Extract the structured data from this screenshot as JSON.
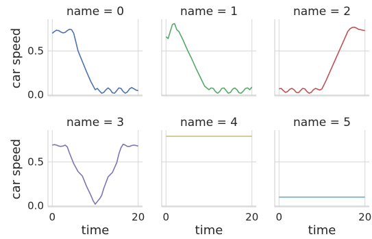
{
  "chart_data": {
    "type": "line",
    "xlabel": "time",
    "ylabel": "car speed",
    "xlim": [
      -1,
      21
    ],
    "ylim": [
      -0.01,
      0.86
    ],
    "xticks": [
      0,
      20
    ],
    "yticks": [
      0.0,
      0.5
    ],
    "ytick_labels": [
      "0.0",
      "0.5"
    ],
    "xtick_labels": [
      "0",
      "20"
    ],
    "grid": true,
    "panels": [
      {
        "title": "name = 0",
        "color": "#4c72b0",
        "x": [
          0,
          0.5,
          1,
          1.5,
          2,
          2.5,
          3,
          3.5,
          4,
          4.5,
          5,
          5.5,
          6,
          7,
          8,
          9,
          10,
          10.5,
          11,
          11.5,
          12,
          12.5,
          13,
          13.5,
          14,
          14.5,
          15,
          15.5,
          16,
          16.5,
          17,
          17.5,
          18,
          18.5,
          19,
          19.5,
          20
        ],
        "y": [
          0.7,
          0.72,
          0.735,
          0.73,
          0.715,
          0.705,
          0.71,
          0.73,
          0.745,
          0.74,
          0.7,
          0.6,
          0.5,
          0.38,
          0.26,
          0.15,
          0.06,
          0.075,
          0.045,
          0.02,
          0.03,
          0.06,
          0.08,
          0.06,
          0.025,
          0.02,
          0.05,
          0.08,
          0.075,
          0.04,
          0.02,
          0.035,
          0.07,
          0.085,
          0.07,
          0.055,
          0.05
        ]
      },
      {
        "title": "name = 1",
        "color": "#55a868",
        "x": [
          0,
          0.5,
          1,
          1.5,
          2,
          2.5,
          3,
          4,
          5,
          6,
          7,
          8,
          9,
          10,
          10.5,
          11,
          11.5,
          12,
          12.5,
          13,
          13.5,
          14,
          14.5,
          15,
          15.5,
          16,
          16.5,
          17,
          17.5,
          18,
          18.5,
          19,
          19.5,
          20
        ],
        "y": [
          0.66,
          0.64,
          0.72,
          0.8,
          0.81,
          0.74,
          0.72,
          0.62,
          0.51,
          0.41,
          0.3,
          0.2,
          0.1,
          0.06,
          0.08,
          0.075,
          0.04,
          0.02,
          0.04,
          0.075,
          0.08,
          0.05,
          0.02,
          0.03,
          0.065,
          0.08,
          0.06,
          0.025,
          0.02,
          0.045,
          0.075,
          0.08,
          0.06,
          0.09
        ]
      },
      {
        "title": "name = 2",
        "color": "#c44e52",
        "x": [
          0,
          0.5,
          1,
          1.5,
          2,
          2.5,
          3,
          3.5,
          4,
          4.5,
          5,
          5.5,
          6,
          6.5,
          7,
          7.5,
          8,
          8.5,
          9,
          9.5,
          10,
          11,
          12,
          13,
          14,
          15,
          16,
          16.5,
          17,
          17.5,
          18,
          18.5,
          19,
          19.5,
          20
        ],
        "y": [
          0.07,
          0.075,
          0.05,
          0.03,
          0.04,
          0.065,
          0.075,
          0.06,
          0.03,
          0.025,
          0.05,
          0.075,
          0.07,
          0.04,
          0.02,
          0.03,
          0.06,
          0.075,
          0.065,
          0.055,
          0.07,
          0.17,
          0.28,
          0.39,
          0.5,
          0.61,
          0.72,
          0.75,
          0.765,
          0.77,
          0.76,
          0.745,
          0.74,
          0.735,
          0.73
        ]
      },
      {
        "title": "name = 3",
        "color": "#8172b2",
        "x": [
          0,
          0.5,
          1,
          1.5,
          2,
          2.5,
          3,
          3.5,
          4,
          5,
          6,
          7,
          8,
          8.5,
          9,
          9.5,
          10,
          10.5,
          11,
          11.5,
          12,
          13,
          14,
          15,
          15.5,
          16,
          16.5,
          17,
          17.5,
          18,
          18.5,
          19,
          19.5,
          20
        ],
        "y": [
          0.69,
          0.695,
          0.69,
          0.68,
          0.675,
          0.68,
          0.69,
          0.67,
          0.6,
          0.48,
          0.39,
          0.34,
          0.22,
          0.17,
          0.12,
          0.06,
          0.02,
          0.05,
          0.08,
          0.12,
          0.2,
          0.33,
          0.38,
          0.49,
          0.59,
          0.66,
          0.7,
          0.69,
          0.675,
          0.675,
          0.685,
          0.69,
          0.685,
          0.68
        ]
      },
      {
        "title": "name = 4",
        "color": "#ccb974",
        "x": [
          0,
          20
        ],
        "y": [
          0.79,
          0.79
        ]
      },
      {
        "title": "name = 5",
        "color": "#64b5cd",
        "x": [
          0,
          20
        ],
        "y": [
          0.1,
          0.1
        ]
      }
    ]
  }
}
